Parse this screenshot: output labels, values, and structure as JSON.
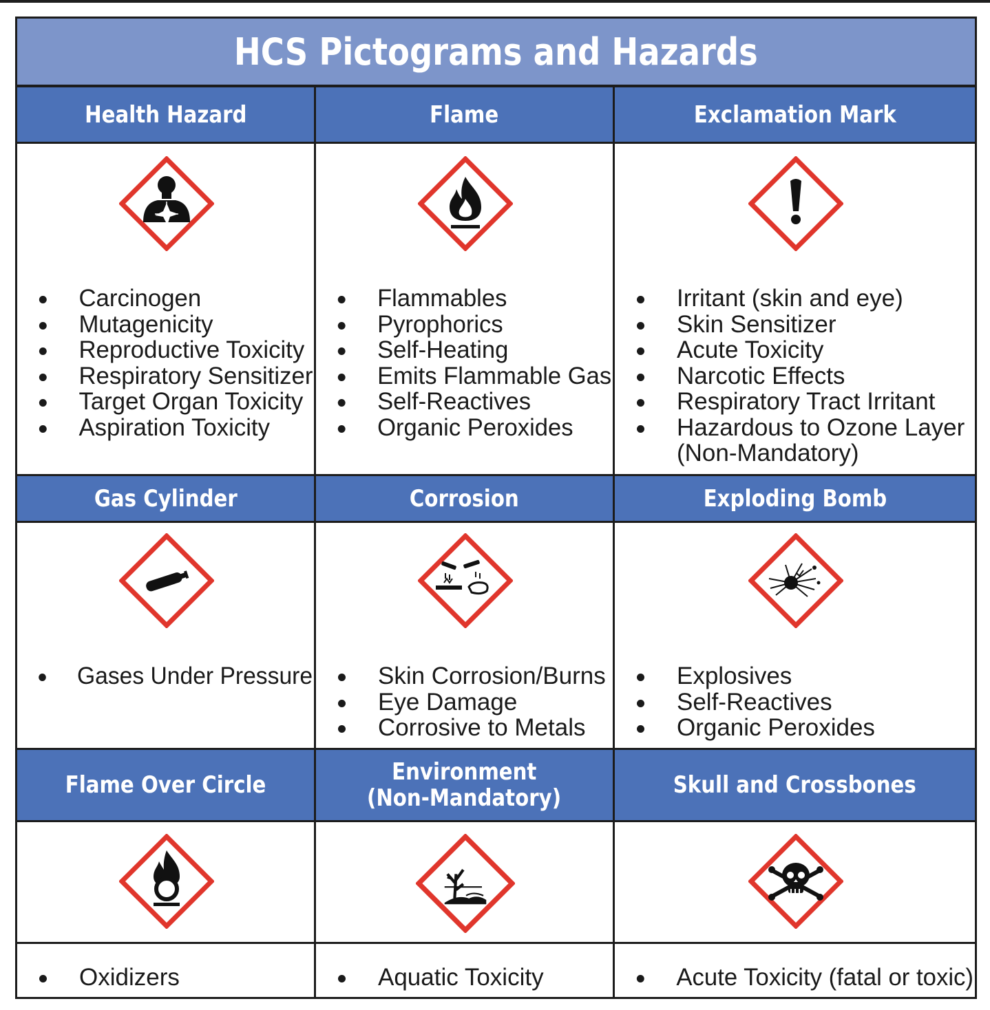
{
  "title": "HCS Pictograms and Hazards",
  "colors": {
    "title_bg": "#7d95ca",
    "header_bg": "#4c72b8",
    "diamond_border": "#e0362c",
    "text": "#1a1a1a"
  },
  "pictograms": [
    {
      "name": "Health Hazard",
      "icon": "health-hazard-icon",
      "hazards": [
        "Carcinogen",
        "Mutagenicity",
        "Reproductive Toxicity",
        "Respiratory Sensitizer",
        "Target Organ Toxicity",
        "Aspiration Toxicity"
      ]
    },
    {
      "name": "Flame",
      "icon": "flame-icon",
      "hazards": [
        "Flammables",
        "Pyrophorics",
        "Self-Heating",
        "Emits Flammable Gas",
        "Self-Reactives",
        "Organic Peroxides"
      ]
    },
    {
      "name": "Exclamation Mark",
      "icon": "exclamation-mark-icon",
      "hazards": [
        "Irritant (skin and eye)",
        "Skin Sensitizer",
        "Acute Toxicity",
        "Narcotic Effects",
        "Respiratory Tract Irritant",
        "Hazardous to Ozone Layer",
        "(Non-Mandatory)"
      ]
    },
    {
      "name": "Gas Cylinder",
      "icon": "gas-cylinder-icon",
      "hazards": [
        "Gases Under Pressure"
      ]
    },
    {
      "name": "Corrosion",
      "icon": "corrosion-icon",
      "hazards": [
        "Skin Corrosion/Burns",
        "Eye Damage",
        "Corrosive to Metals"
      ]
    },
    {
      "name": "Exploding Bomb",
      "icon": "exploding-bomb-icon",
      "hazards": [
        "Explosives",
        "Self-Reactives",
        "Organic Peroxides"
      ]
    },
    {
      "name": "Flame Over Circle",
      "icon": "flame-over-circle-icon",
      "hazards": [
        "Oxidizers"
      ]
    },
    {
      "name_line1": "Environment",
      "name_line2": "(Non-Mandatory)",
      "icon": "environment-icon",
      "hazards": [
        "Aquatic Toxicity"
      ]
    },
    {
      "name": "Skull and Crossbones",
      "icon": "skull-and-crossbones-icon",
      "hazards": [
        "Acute Toxicity (fatal or toxic)"
      ]
    }
  ]
}
